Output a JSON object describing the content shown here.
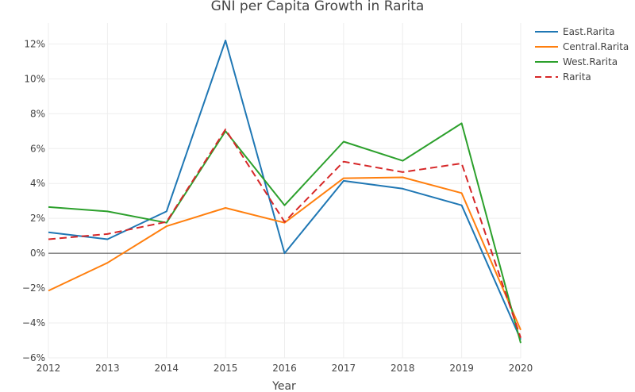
{
  "chart_data": {
    "type": "line",
    "title": "GNI per Capita Growth in Rarita",
    "xlabel": "Year",
    "ylabel": "",
    "x": [
      2012,
      2013,
      2014,
      2015,
      2016,
      2017,
      2018,
      2019,
      2020
    ],
    "x_ticks": [
      "2012",
      "2013",
      "2014",
      "2015",
      "2016",
      "2017",
      "2018",
      "2019",
      "2020"
    ],
    "ylim": [
      -6,
      13.2
    ],
    "y_ticks": [
      -6,
      -4,
      -2,
      0,
      2,
      4,
      6,
      8,
      10,
      12
    ],
    "y_tick_labels": [
      "−6%",
      "−4%",
      "−2%",
      "0%",
      "2%",
      "4%",
      "6%",
      "8%",
      "10%",
      "12%"
    ],
    "grid": true,
    "legend_position": "top-right",
    "series": [
      {
        "name": "East.Rarita",
        "color": "#1f77b4",
        "dash": "solid",
        "values": [
          1.2,
          0.8,
          2.4,
          12.2,
          0.0,
          4.15,
          3.7,
          2.75,
          -4.95
        ]
      },
      {
        "name": "Central.Rarita",
        "color": "#ff7f0e",
        "dash": "solid",
        "values": [
          -2.15,
          -0.55,
          1.55,
          2.6,
          1.75,
          4.3,
          4.35,
          3.45,
          -4.4
        ]
      },
      {
        "name": "West.Rarita",
        "color": "#2ca02c",
        "dash": "solid",
        "values": [
          2.65,
          2.4,
          1.75,
          7.0,
          2.75,
          6.4,
          5.3,
          7.45,
          -5.15
        ]
      },
      {
        "name": "Rarita",
        "color": "#d62728",
        "dash": "dash",
        "values": [
          0.8,
          1.1,
          1.8,
          7.1,
          1.8,
          5.25,
          4.65,
          5.15,
          -4.85
        ]
      }
    ]
  }
}
